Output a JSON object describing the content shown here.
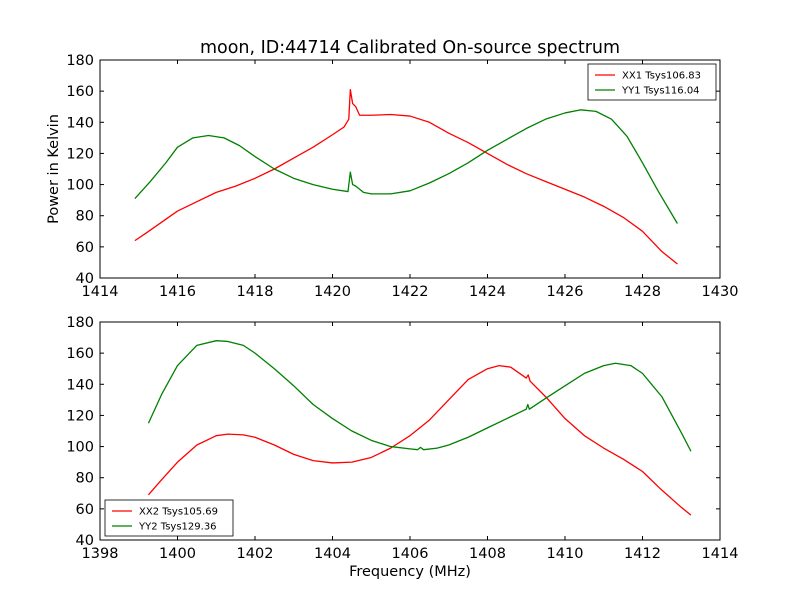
{
  "figure": {
    "title": "moon, ID:44714 Calibrated On-source spectrum",
    "xlabel": "Frequency (MHz)"
  },
  "chart_data": [
    {
      "type": "line",
      "ylabel": "Power in Kelvin",
      "xlim": [
        1414,
        1430
      ],
      "ylim": [
        40,
        180
      ],
      "xticks": [
        1414,
        1416,
        1418,
        1420,
        1422,
        1424,
        1426,
        1428,
        1430
      ],
      "yticks": [
        40,
        60,
        80,
        100,
        120,
        140,
        160,
        180
      ],
      "legend_position": "top-right",
      "series": [
        {
          "name": "XX1 Tsys106.83",
          "color": "#ff0000",
          "points": [
            [
              1414.9,
              64
            ],
            [
              1415.2,
              69
            ],
            [
              1415.6,
              76
            ],
            [
              1416.0,
              83
            ],
            [
              1416.5,
              89
            ],
            [
              1417.0,
              95
            ],
            [
              1417.5,
              99
            ],
            [
              1418.0,
              104
            ],
            [
              1418.5,
              110
            ],
            [
              1419.0,
              117
            ],
            [
              1419.5,
              124
            ],
            [
              1420.0,
              132
            ],
            [
              1420.3,
              137
            ],
            [
              1420.42,
              142
            ],
            [
              1420.46,
              161
            ],
            [
              1420.52,
              152
            ],
            [
              1420.6,
              150
            ],
            [
              1420.7,
              144.5
            ],
            [
              1421.0,
              144.5
            ],
            [
              1421.5,
              145
            ],
            [
              1422.0,
              144
            ],
            [
              1422.5,
              140
            ],
            [
              1423.0,
              133
            ],
            [
              1423.5,
              127
            ],
            [
              1424.0,
              120
            ],
            [
              1424.5,
              113
            ],
            [
              1425.0,
              107
            ],
            [
              1425.5,
              102
            ],
            [
              1426.0,
              97
            ],
            [
              1426.5,
              92
            ],
            [
              1427.0,
              86
            ],
            [
              1427.5,
              79
            ],
            [
              1428.0,
              70
            ],
            [
              1428.5,
              57
            ],
            [
              1428.9,
              49
            ]
          ]
        },
        {
          "name": "YY1 Tsys116.04",
          "color": "#008000",
          "points": [
            [
              1414.9,
              91
            ],
            [
              1415.3,
              102
            ],
            [
              1415.7,
              114
            ],
            [
              1416.0,
              124
            ],
            [
              1416.4,
              130
            ],
            [
              1416.8,
              131.5
            ],
            [
              1417.2,
              130
            ],
            [
              1417.6,
              125
            ],
            [
              1418.0,
              118
            ],
            [
              1418.5,
              110
            ],
            [
              1419.0,
              104
            ],
            [
              1419.5,
              100
            ],
            [
              1420.0,
              97
            ],
            [
              1420.4,
              95.5
            ],
            [
              1420.46,
              108
            ],
            [
              1420.52,
              100
            ],
            [
              1420.6,
              99
            ],
            [
              1420.8,
              95
            ],
            [
              1421.0,
              94
            ],
            [
              1421.5,
              94
            ],
            [
              1422.0,
              96
            ],
            [
              1422.5,
              101
            ],
            [
              1423.0,
              107
            ],
            [
              1423.5,
              114
            ],
            [
              1424.0,
              122
            ],
            [
              1424.5,
              129
            ],
            [
              1425.0,
              136
            ],
            [
              1425.5,
              142
            ],
            [
              1426.0,
              146
            ],
            [
              1426.4,
              148
            ],
            [
              1426.8,
              147
            ],
            [
              1427.2,
              142
            ],
            [
              1427.6,
              131
            ],
            [
              1428.0,
              114
            ],
            [
              1428.4,
              96
            ],
            [
              1428.9,
              75
            ]
          ]
        }
      ]
    },
    {
      "type": "line",
      "ylabel": "",
      "xlim": [
        1398,
        1414
      ],
      "ylim": [
        40,
        180
      ],
      "xticks": [
        1398,
        1400,
        1402,
        1404,
        1406,
        1408,
        1410,
        1412,
        1414
      ],
      "yticks": [
        40,
        60,
        80,
        100,
        120,
        140,
        160,
        180
      ],
      "legend_position": "bottom-left",
      "series": [
        {
          "name": "XX2 Tsys105.69",
          "color": "#ff0000",
          "points": [
            [
              1399.25,
              69
            ],
            [
              1399.6,
              79
            ],
            [
              1400.0,
              90
            ],
            [
              1400.5,
              101
            ],
            [
              1401.0,
              107
            ],
            [
              1401.3,
              108
            ],
            [
              1401.7,
              107.5
            ],
            [
              1402.0,
              106
            ],
            [
              1402.5,
              101
            ],
            [
              1403.0,
              95
            ],
            [
              1403.5,
              91
            ],
            [
              1404.0,
              89.5
            ],
            [
              1404.5,
              90
            ],
            [
              1405.0,
              93
            ],
            [
              1405.5,
              99
            ],
            [
              1406.0,
              107
            ],
            [
              1406.5,
              117
            ],
            [
              1407.0,
              130
            ],
            [
              1407.5,
              143
            ],
            [
              1408.0,
              150
            ],
            [
              1408.3,
              152
            ],
            [
              1408.6,
              151
            ],
            [
              1409.0,
              144
            ],
            [
              1409.05,
              146
            ],
            [
              1409.1,
              142
            ],
            [
              1409.5,
              132
            ],
            [
              1410.0,
              118
            ],
            [
              1410.5,
              107
            ],
            [
              1411.0,
              99
            ],
            [
              1411.5,
              92
            ],
            [
              1412.0,
              84
            ],
            [
              1412.5,
              72
            ],
            [
              1413.0,
              61
            ],
            [
              1413.25,
              56
            ]
          ]
        },
        {
          "name": "YY2 Tsys129.36",
          "color": "#008000",
          "points": [
            [
              1399.25,
              115
            ],
            [
              1399.6,
              134
            ],
            [
              1400.0,
              152
            ],
            [
              1400.5,
              165
            ],
            [
              1401.0,
              168
            ],
            [
              1401.3,
              167.5
            ],
            [
              1401.7,
              165
            ],
            [
              1402.0,
              160
            ],
            [
              1402.5,
              150
            ],
            [
              1403.0,
              139
            ],
            [
              1403.5,
              127
            ],
            [
              1404.0,
              118
            ],
            [
              1404.5,
              110
            ],
            [
              1405.0,
              104
            ],
            [
              1405.5,
              100
            ],
            [
              1406.0,
              98.5
            ],
            [
              1406.2,
              98
            ],
            [
              1406.27,
              99.5
            ],
            [
              1406.35,
              98
            ],
            [
              1406.7,
              99
            ],
            [
              1407.0,
              101
            ],
            [
              1407.5,
              106
            ],
            [
              1408.0,
              112
            ],
            [
              1408.5,
              118
            ],
            [
              1409.0,
              124
            ],
            [
              1409.04,
              127
            ],
            [
              1409.08,
              124
            ],
            [
              1409.5,
              131
            ],
            [
              1410.0,
              139
            ],
            [
              1410.5,
              147
            ],
            [
              1411.0,
              152
            ],
            [
              1411.3,
              153.5
            ],
            [
              1411.7,
              152
            ],
            [
              1412.0,
              147
            ],
            [
              1412.5,
              132
            ],
            [
              1413.0,
              109
            ],
            [
              1413.25,
              97
            ]
          ]
        }
      ]
    }
  ]
}
